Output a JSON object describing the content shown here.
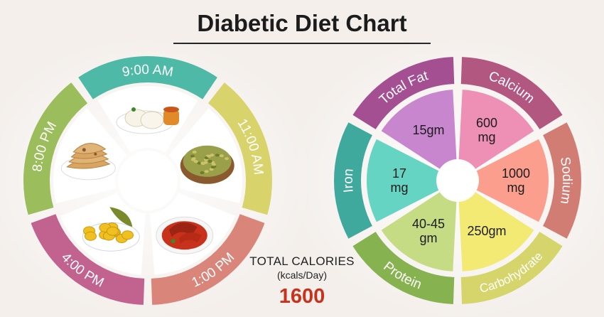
{
  "title": "Diabetic Diet Chart",
  "meal_wheel": {
    "segments": [
      {
        "label": "9:00 AM",
        "color": "#4fb9a7",
        "food_icon": "idli-sambar-icon"
      },
      {
        "label": "11:00 AM",
        "color": "#d9d36b",
        "food_icon": "sprouts-bowl-icon"
      },
      {
        "label": "1:00 PM",
        "color": "#d98579",
        "food_icon": "fish-curry-icon"
      },
      {
        "label": "4:00 PM",
        "color": "#c2628f",
        "food_icon": "jackfruit-icon"
      },
      {
        "label": "8:00 PM",
        "color": "#9cbd5b",
        "food_icon": "chapati-icon"
      }
    ]
  },
  "nutrient_wheel": {
    "nutrients": [
      {
        "name": "Total Fat",
        "value": "15gm",
        "ring_color": "#a54f93",
        "fill_color": "#c886cf"
      },
      {
        "name": "Calcium",
        "value": "600 mg",
        "ring_color": "#b25780",
        "fill_color": "#ee8fb6"
      },
      {
        "name": "Sodium",
        "value": "1000 mg",
        "ring_color": "#d27d73",
        "fill_color": "#fb9e8e"
      },
      {
        "name": "Carbohydrate",
        "value": "250gm",
        "ring_color": "#d6d56c",
        "fill_color": "#f3ea74"
      },
      {
        "name": "Protein",
        "value": "40-45 gm",
        "ring_color": "#86b34f",
        "fill_color": "#c5dc85"
      },
      {
        "name": "Iron",
        "value": "17 mg",
        "ring_color": "#3ea99c",
        "fill_color": "#66d4c3"
      }
    ]
  },
  "total_calories": {
    "label": "TOTAL CALORIES",
    "unit": "(kcals/Day)",
    "value": "1600",
    "value_color": "#c8321c"
  }
}
